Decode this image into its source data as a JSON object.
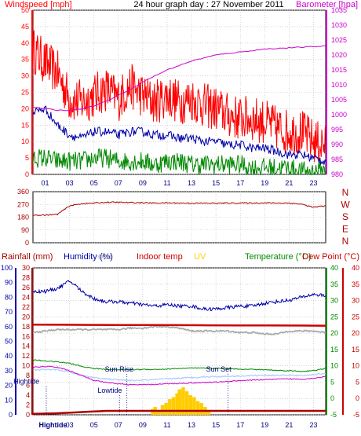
{
  "header": {
    "title": "24 hour graph day : 27 November 2011",
    "left_label": "Windspeed [mph]",
    "right_label": "Barometer [hpa]"
  },
  "colors": {
    "wind": "#ff0000",
    "gust": "#ff0000",
    "avg": "#0000aa",
    "green": "#008800",
    "baro": "#cc00cc",
    "dir": "#aa0000",
    "rain": "#aa0000",
    "humidity": "#0000aa",
    "solar": "#aaaaaa",
    "indoor": "#cc0000",
    "uv": "#ffcc00",
    "temp": "#008800",
    "dew": "#cc0000"
  },
  "chart_data": [
    {
      "type": "line",
      "title": "24 hour graph day : 27 November 2011",
      "ylabel": "Windspeed [mph]",
      "y2label": "Barometer [hpa]",
      "ylim": [
        0,
        50
      ],
      "y2lim": [
        980,
        1035
      ],
      "yticks": [
        0,
        5,
        10,
        15,
        20,
        25,
        30,
        35,
        40,
        45,
        50
      ],
      "y2ticks": [
        980,
        985,
        990,
        995,
        1000,
        1005,
        1010,
        1015,
        1020,
        1025,
        1030,
        1035
      ],
      "x_tick_labels": [
        "01",
        "03",
        "05",
        "07",
        "09",
        "11",
        "13",
        "15",
        "17",
        "19",
        "21",
        "23"
      ],
      "grid": true,
      "series": [
        {
          "key": "gust",
          "x": [
            0,
            1,
            2,
            3,
            4,
            5,
            6,
            7,
            8,
            9,
            10,
            11,
            12,
            13,
            14,
            15,
            16,
            17,
            18,
            19,
            20,
            21,
            22,
            23,
            24
          ],
          "values": [
            38,
            34,
            31,
            23,
            22,
            24,
            26,
            23,
            27,
            24,
            22,
            24,
            22,
            23,
            21,
            20,
            18,
            17,
            17,
            16,
            14,
            13,
            13,
            10,
            9
          ]
        },
        {
          "key": "avg",
          "x": [
            0,
            1,
            2,
            3,
            4,
            5,
            6,
            7,
            8,
            9,
            10,
            11,
            12,
            13,
            14,
            15,
            16,
            17,
            18,
            19,
            20,
            21,
            22,
            23,
            24
          ],
          "values": [
            19,
            20,
            15,
            12,
            11,
            13,
            13,
            12,
            13,
            13,
            12,
            12,
            11,
            11,
            10,
            10,
            9,
            9,
            8,
            8,
            7,
            6,
            6,
            5,
            4
          ]
        },
        {
          "key": "green",
          "x": [
            0,
            1,
            2,
            3,
            4,
            5,
            6,
            7,
            8,
            9,
            10,
            11,
            12,
            13,
            14,
            15,
            16,
            17,
            18,
            19,
            20,
            21,
            22,
            23,
            24
          ],
          "values": [
            5,
            5,
            4,
            4,
            4,
            5,
            5,
            4,
            4,
            4,
            3,
            4,
            4,
            3,
            3,
            3,
            3,
            3,
            2,
            2,
            2,
            2,
            1,
            1,
            1
          ]
        },
        {
          "key": "baro",
          "axis": "right",
          "x": [
            0,
            1,
            2,
            3,
            4,
            5,
            6,
            7,
            8,
            9,
            10,
            11,
            12,
            13,
            14,
            15,
            16,
            17,
            18,
            19,
            20,
            21,
            22,
            23,
            24
          ],
          "values": [
            1002.5,
            1002,
            1001.5,
            1001.5,
            1002,
            1003,
            1004.5,
            1006.5,
            1008.5,
            1011,
            1013,
            1015,
            1016.5,
            1018,
            1019,
            1020,
            1020.5,
            1021,
            1021.5,
            1022,
            1022.2,
            1022.4,
            1022.6,
            1022.8,
            1023
          ]
        }
      ]
    },
    {
      "type": "line",
      "ylim": [
        0,
        360
      ],
      "yticks": [
        0,
        90,
        180,
        270,
        360
      ],
      "right_labels": [
        "N",
        "W",
        "S",
        "E",
        "N"
      ],
      "series": [
        {
          "key": "dir",
          "x": [
            0,
            1,
            2,
            3,
            4,
            5,
            6,
            7,
            8,
            9,
            10,
            11,
            12,
            13,
            14,
            15,
            16,
            17,
            18,
            19,
            20,
            21,
            22,
            23,
            24
          ],
          "values": [
            195,
            195,
            200,
            260,
            275,
            280,
            285,
            285,
            283,
            282,
            280,
            281,
            280,
            279,
            279,
            278,
            280,
            280,
            280,
            281,
            280,
            280,
            272,
            250,
            260
          ]
        }
      ]
    },
    {
      "type": "line",
      "header_labels": [
        {
          "key": "rain",
          "text": "Rainfall (mm)"
        },
        {
          "key": "humidity",
          "text": "Humidity (%)"
        },
        {
          "key": "solar",
          "text": "olar"
        },
        {
          "key": "indoor",
          "text": "Indoor temp"
        },
        {
          "key": "uv",
          "text": "UV"
        },
        {
          "key": "temp",
          "text": "Temperature (°C)"
        },
        {
          "key": "dew",
          "text": "Dew Point (°C)"
        }
      ],
      "axes": {
        "rain_ticks": [
          0,
          2,
          4,
          6,
          8,
          10,
          12,
          14,
          16,
          18,
          20,
          22,
          24,
          26,
          28,
          30
        ],
        "humidity_ticks": [
          0,
          10,
          20,
          30,
          40,
          50,
          60,
          70,
          80,
          90,
          100
        ],
        "temp_ticks": [
          -5,
          0,
          5,
          10,
          15,
          20,
          25,
          30,
          35,
          40
        ],
        "humidity_lim": [
          0,
          100
        ],
        "temp_lim": [
          -5,
          40
        ]
      },
      "x_tick_labels": [
        "Hightide",
        "03",
        "05",
        "07",
        "09",
        "11",
        "13",
        "15",
        "17",
        "19",
        "21",
        "23"
      ],
      "annotations": [
        {
          "text": "Hightide",
          "x": 1.1,
          "y": 5.2
        },
        {
          "text": "Lowtide",
          "x": 7.1,
          "y": 2.5
        },
        {
          "text": "Sun Rise",
          "x": 7.7,
          "y": 9.0
        },
        {
          "text": "Sun Set",
          "x": 16.0,
          "y": 9.0
        }
      ],
      "series": [
        {
          "key": "humidity",
          "axis": "humidity",
          "x": [
            0,
            1,
            2,
            3,
            3.5,
            4,
            5,
            6,
            7,
            8,
            9,
            10,
            11,
            12,
            13,
            14,
            15,
            16,
            17,
            18,
            19,
            20,
            21,
            22,
            23,
            24
          ],
          "values": [
            84,
            84,
            86,
            91,
            88,
            84,
            79,
            77,
            77,
            76,
            75,
            74,
            75,
            74,
            74,
            72,
            72,
            73,
            74,
            74,
            76,
            77,
            78,
            80,
            82,
            81
          ]
        },
        {
          "key": "solar",
          "axis": "humidity",
          "x": [
            0,
            1,
            2,
            3,
            4,
            5,
            6,
            7,
            8,
            9,
            10,
            11,
            12,
            13,
            14,
            15,
            16,
            17,
            18,
            19,
            20,
            21,
            22,
            23,
            24
          ],
          "values": [
            56,
            57,
            58,
            58,
            58,
            58,
            58,
            58,
            59,
            59,
            60,
            60,
            59,
            57,
            57,
            57,
            57,
            56,
            56,
            55,
            55,
            57,
            57,
            57,
            56
          ]
        },
        {
          "key": "indoor",
          "axis": "temp",
          "x": [
            0,
            24
          ],
          "values": [
            22.6,
            22.3
          ]
        },
        {
          "key": "temp",
          "axis": "temp",
          "x": [
            0,
            1,
            2,
            3,
            4,
            5,
            6,
            7,
            8,
            9,
            10,
            11,
            12,
            13,
            14,
            15,
            16,
            17,
            18,
            19,
            20,
            21,
            22,
            23,
            24
          ],
          "values": [
            11.8,
            11.5,
            11.2,
            10.8,
            9.8,
            9.2,
            8.9,
            8.8,
            8.8,
            8.9,
            8.9,
            9.0,
            9.2,
            9.3,
            9.3,
            9.2,
            9.2,
            9.0,
            8.9,
            8.8,
            8.6,
            8.5,
            8.3,
            8.5,
            9.2
          ]
        },
        {
          "key": "dew",
          "axis": "temp",
          "x": [
            0,
            1,
            2,
            3,
            4,
            5,
            6,
            7,
            8,
            9,
            10,
            11,
            12,
            13,
            14,
            15,
            16,
            17,
            18,
            19,
            20,
            21,
            22,
            23,
            24
          ],
          "values": [
            9.5,
            9.8,
            9.6,
            8.5,
            7.0,
            5.5,
            4.9,
            4.5,
            4.2,
            4.2,
            4.3,
            4.5,
            4.6,
            4.8,
            4.9,
            5.0,
            5.2,
            5.5,
            5.6,
            5.8,
            5.9,
            6.0,
            5.9,
            6.2,
            6.7
          ]
        },
        {
          "key": "dew_light",
          "axis": "temp",
          "x": [
            0,
            1,
            2,
            3,
            4,
            5,
            6,
            7,
            8,
            9,
            10,
            11,
            12,
            13,
            14,
            15,
            16,
            17,
            18,
            19,
            20,
            21,
            22,
            23,
            24
          ],
          "values": [
            8.7,
            8.9,
            8.8,
            8.1,
            7.1,
            6.4,
            6.0,
            5.7,
            5.5,
            5.6,
            5.8,
            6.0,
            6.2,
            6.4,
            6.6,
            6.7,
            6.8,
            6.9,
            7.0,
            7.1,
            7.1,
            7.1,
            7.0,
            7.3,
            7.7
          ]
        },
        {
          "key": "rain",
          "axis": "rain",
          "x": [
            0,
            2,
            6,
            24
          ],
          "values": [
            0.2,
            0.3,
            0.8,
            0.8
          ]
        }
      ],
      "uv_bars": {
        "x": [
          9.8,
          10.0,
          10.3,
          10.6,
          10.9,
          11.2,
          11.5,
          11.8,
          12.0,
          12.3,
          12.6,
          12.9,
          13.2,
          13.5,
          13.8,
          14.1,
          14.4
        ],
        "values": [
          3,
          4,
          2,
          5,
          6,
          8,
          9,
          11,
          13,
          14,
          12,
          10,
          9,
          7,
          6,
          4,
          2
        ]
      }
    }
  ]
}
